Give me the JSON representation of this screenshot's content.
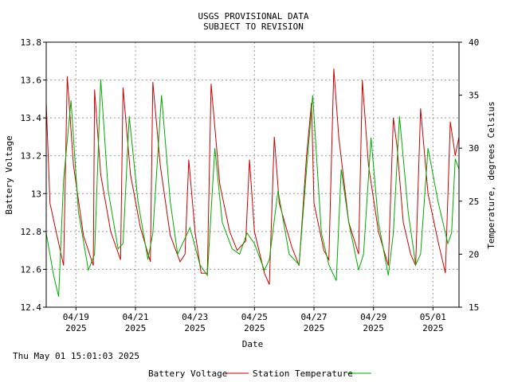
{
  "header": {
    "line1": "USGS PROVISIONAL DATA",
    "line2": "SUBJECT TO REVISION"
  },
  "timestamp": "Thu May 01 15:01:03 2025",
  "chart_data": {
    "type": "line",
    "xlabel": "Date",
    "ylabel_left": "Battery Voltage",
    "ylabel_right": "Temperature, degrees Celsius",
    "x_range": [
      "2025-04-18T00:00",
      "2025-05-01T21:00"
    ],
    "ylim_left": [
      12.4,
      13.8
    ],
    "ylim_right": [
      15,
      40
    ],
    "yticks_left": [
      "12.4",
      "12.6",
      "12.8",
      "13",
      "13.2",
      "13.4",
      "13.6",
      "13.8"
    ],
    "yticks_right": [
      "15",
      "20",
      "25",
      "30",
      "35",
      "40"
    ],
    "xticks": [
      {
        "date": "2025-04-19",
        "label": "04/19",
        "year": "2025"
      },
      {
        "date": "2025-04-21",
        "label": "04/21",
        "year": "2025"
      },
      {
        "date": "2025-04-23",
        "label": "04/23",
        "year": "2025"
      },
      {
        "date": "2025-04-25",
        "label": "04/25",
        "year": "2025"
      },
      {
        "date": "2025-04-27",
        "label": "04/27",
        "year": "2025"
      },
      {
        "date": "2025-04-29",
        "label": "04/29",
        "year": "2025"
      },
      {
        "date": "2025-05-01",
        "label": "05/01",
        "year": "2025"
      }
    ],
    "grid": true,
    "legend_position": "bottom",
    "series": [
      {
        "name": "Battery Voltage",
        "axis": "left",
        "color": "#cc0000",
        "points": [
          [
            "2025-04-18T00:00",
            13.48
          ],
          [
            "2025-04-18T03:00",
            12.95
          ],
          [
            "2025-04-18T08:00",
            12.8
          ],
          [
            "2025-04-18T14:00",
            12.62
          ],
          [
            "2025-04-18T17:00",
            13.62
          ],
          [
            "2025-04-18T22:00",
            13.15
          ],
          [
            "2025-04-19T06:00",
            12.78
          ],
          [
            "2025-04-19T14:00",
            12.62
          ],
          [
            "2025-04-19T15:00",
            13.55
          ],
          [
            "2025-04-19T20:00",
            13.1
          ],
          [
            "2025-04-20T04:00",
            12.8
          ],
          [
            "2025-04-20T12:00",
            12.65
          ],
          [
            "2025-04-20T14:00",
            13.56
          ],
          [
            "2025-04-20T20:00",
            13.1
          ],
          [
            "2025-04-21T04:00",
            12.82
          ],
          [
            "2025-04-21T12:00",
            12.64
          ],
          [
            "2025-04-21T14:00",
            13.59
          ],
          [
            "2025-04-21T20:00",
            13.15
          ],
          [
            "2025-04-22T04:00",
            12.78
          ],
          [
            "2025-04-22T12:00",
            12.64
          ],
          [
            "2025-04-22T16:00",
            12.68
          ],
          [
            "2025-04-22T19:00",
            13.18
          ],
          [
            "2025-04-23T00:00",
            12.8
          ],
          [
            "2025-04-23T05:00",
            12.58
          ],
          [
            "2025-04-23T10:00",
            12.58
          ],
          [
            "2025-04-23T13:00",
            13.58
          ],
          [
            "2025-04-23T20:00",
            13.05
          ],
          [
            "2025-04-24T04:00",
            12.8
          ],
          [
            "2025-04-24T10:00",
            12.7
          ],
          [
            "2025-04-24T17:00",
            12.75
          ],
          [
            "2025-04-24T20:00",
            13.18
          ],
          [
            "2025-04-25T00:00",
            12.8
          ],
          [
            "2025-04-25T08:00",
            12.58
          ],
          [
            "2025-04-25T12:00",
            12.52
          ],
          [
            "2025-04-25T16:00",
            13.3
          ],
          [
            "2025-04-25T20:00",
            12.95
          ],
          [
            "2025-04-26T06:00",
            12.72
          ],
          [
            "2025-04-26T12:00",
            12.62
          ],
          [
            "2025-04-26T18:00",
            13.2
          ],
          [
            "2025-04-26T22:00",
            13.48
          ],
          [
            "2025-04-27T00:00",
            12.95
          ],
          [
            "2025-04-27T08:00",
            12.7
          ],
          [
            "2025-04-27T12:00",
            12.65
          ],
          [
            "2025-04-27T16:00",
            13.66
          ],
          [
            "2025-04-27T20:00",
            13.3
          ],
          [
            "2025-04-28T04:00",
            12.85
          ],
          [
            "2025-04-28T12:00",
            12.68
          ],
          [
            "2025-04-28T15:00",
            13.6
          ],
          [
            "2025-04-28T20:00",
            13.15
          ],
          [
            "2025-04-29T04:00",
            12.8
          ],
          [
            "2025-04-29T12:00",
            12.62
          ],
          [
            "2025-04-29T16:00",
            13.4
          ],
          [
            "2025-04-29T19:00",
            13.25
          ],
          [
            "2025-04-30T00:00",
            12.85
          ],
          [
            "2025-04-30T06:00",
            12.68
          ],
          [
            "2025-04-30T10:00",
            12.62
          ],
          [
            "2025-04-30T14:00",
            13.45
          ],
          [
            "2025-04-30T20:00",
            13.0
          ],
          [
            "2025-05-01T04:00",
            12.75
          ],
          [
            "2025-05-01T10:00",
            12.58
          ],
          [
            "2025-05-01T14:00",
            13.38
          ],
          [
            "2025-05-01T18:00",
            13.2
          ],
          [
            "2025-05-01T21:00",
            13.3
          ]
        ]
      },
      {
        "name": "Station Temperature",
        "axis": "right",
        "color": "#00aa00",
        "points": [
          [
            "2025-04-18T00:00",
            22.0
          ],
          [
            "2025-04-18T06:00",
            18.0
          ],
          [
            "2025-04-18T10:00",
            16.0
          ],
          [
            "2025-04-18T14:00",
            27.0
          ],
          [
            "2025-04-18T20:00",
            34.5
          ],
          [
            "2025-04-19T02:00",
            24.0
          ],
          [
            "2025-04-19T10:00",
            18.5
          ],
          [
            "2025-04-19T15:00",
            20.0
          ],
          [
            "2025-04-19T20:00",
            36.5
          ],
          [
            "2025-04-20T02:00",
            26.0
          ],
          [
            "2025-04-20T10:00",
            20.5
          ],
          [
            "2025-04-20T14:00",
            21.0
          ],
          [
            "2025-04-20T19:00",
            33.0
          ],
          [
            "2025-04-21T02:00",
            25.0
          ],
          [
            "2025-04-21T10:00",
            19.5
          ],
          [
            "2025-04-21T14:00",
            22.0
          ],
          [
            "2025-04-21T21:00",
            35.0
          ],
          [
            "2025-04-22T04:00",
            25.0
          ],
          [
            "2025-04-22T10:00",
            20.0
          ],
          [
            "2025-04-22T16:00",
            21.5
          ],
          [
            "2025-04-22T20:00",
            22.5
          ],
          [
            "2025-04-23T04:00",
            19.0
          ],
          [
            "2025-04-23T10:00",
            18.0
          ],
          [
            "2025-04-23T16:00",
            30.0
          ],
          [
            "2025-04-23T22:00",
            23.0
          ],
          [
            "2025-04-24T06:00",
            20.5
          ],
          [
            "2025-04-24T12:00",
            20.0
          ],
          [
            "2025-04-24T18:00",
            22.0
          ],
          [
            "2025-04-25T00:00",
            21.0
          ],
          [
            "2025-04-25T08:00",
            18.5
          ],
          [
            "2025-04-25T12:00",
            19.5
          ],
          [
            "2025-04-25T19:00",
            26.0
          ],
          [
            "2025-04-26T04:00",
            20.0
          ],
          [
            "2025-04-26T12:00",
            19.0
          ],
          [
            "2025-04-26T18:00",
            28.0
          ],
          [
            "2025-04-26T23:00",
            35.0
          ],
          [
            "2025-04-27T06:00",
            22.0
          ],
          [
            "2025-04-27T12:00",
            19.0
          ],
          [
            "2025-04-27T18:00",
            17.5
          ],
          [
            "2025-04-27T22:00",
            28.0
          ],
          [
            "2025-04-28T04:00",
            23.0
          ],
          [
            "2025-04-28T12:00",
            18.5
          ],
          [
            "2025-04-28T16:00",
            20.0
          ],
          [
            "2025-04-28T22:00",
            31.0
          ],
          [
            "2025-04-29T04:00",
            23.0
          ],
          [
            "2025-04-29T12:00",
            18.0
          ],
          [
            "2025-04-29T16:00",
            22.0
          ],
          [
            "2025-04-29T21:00",
            33.0
          ],
          [
            "2025-04-30T04:00",
            24.0
          ],
          [
            "2025-04-30T10:00",
            19.0
          ],
          [
            "2025-04-30T14:00",
            20.0
          ],
          [
            "2025-04-30T20:00",
            30.0
          ],
          [
            "2025-05-01T04:00",
            25.0
          ],
          [
            "2025-05-01T12:00",
            21.0
          ],
          [
            "2025-05-01T15:00",
            22.0
          ],
          [
            "2025-05-01T18:00",
            29.0
          ],
          [
            "2025-05-01T21:00",
            28.0
          ]
        ]
      }
    ]
  }
}
